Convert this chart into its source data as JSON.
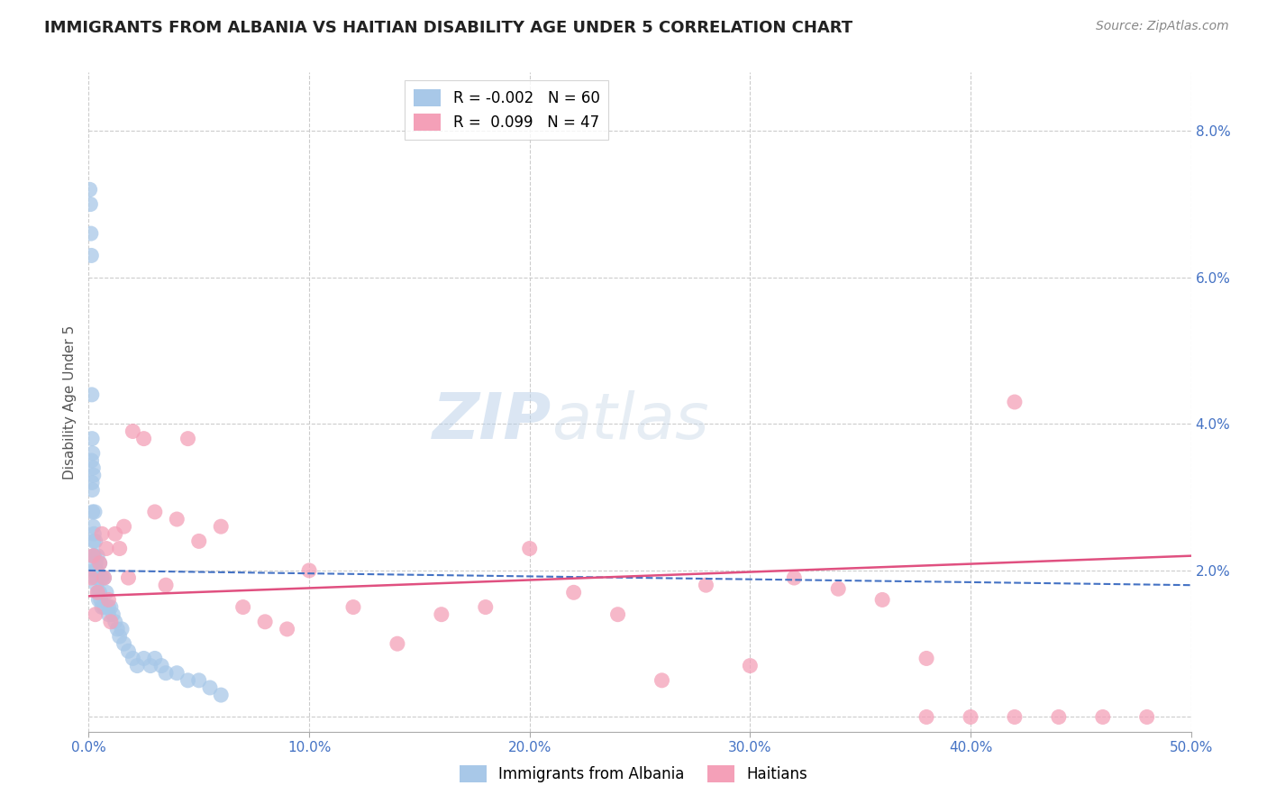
{
  "title": "IMMIGRANTS FROM ALBANIA VS HAITIAN DISABILITY AGE UNDER 5 CORRELATION CHART",
  "source": "Source: ZipAtlas.com",
  "ylabel": "Disability Age Under 5",
  "xlim": [
    0.0,
    0.5
  ],
  "ylim": [
    -0.002,
    0.088
  ],
  "yticks": [
    0.0,
    0.02,
    0.04,
    0.06,
    0.08
  ],
  "ytick_labels": [
    "",
    "2.0%",
    "4.0%",
    "6.0%",
    "8.0%"
  ],
  "xticks": [
    0.0,
    0.1,
    0.2,
    0.3,
    0.4,
    0.5
  ],
  "xtick_labels": [
    "0.0%",
    "10.0%",
    "20.0%",
    "30.0%",
    "40.0%",
    "50.0%"
  ],
  "albania_color": "#a8c8e8",
  "haitian_color": "#f4a0b8",
  "albania_R": "-0.002",
  "albania_N": "60",
  "haitian_R": "0.099",
  "haitian_N": "47",
  "albania_line_color": "#4472c4",
  "haitian_line_color": "#e05080",
  "legend_label_albania": "Immigrants from Albania",
  "legend_label_haitian": "Haitians",
  "watermark_zip": "ZIP",
  "watermark_atlas": "atlas",
  "albania_x": [
    0.0005,
    0.0008,
    0.001,
    0.0012,
    0.0013,
    0.0014,
    0.0015,
    0.0015,
    0.0016,
    0.0017,
    0.0018,
    0.002,
    0.002,
    0.0022,
    0.0022,
    0.0023,
    0.0024,
    0.0025,
    0.0026,
    0.0027,
    0.003,
    0.003,
    0.0032,
    0.0033,
    0.0035,
    0.0035,
    0.004,
    0.004,
    0.0042,
    0.0045,
    0.005,
    0.005,
    0.0055,
    0.006,
    0.006,
    0.007,
    0.007,
    0.008,
    0.009,
    0.009,
    0.01,
    0.011,
    0.012,
    0.013,
    0.014,
    0.015,
    0.016,
    0.018,
    0.02,
    0.022,
    0.025,
    0.028,
    0.03,
    0.033,
    0.035,
    0.04,
    0.045,
    0.05,
    0.055,
    0.06
  ],
  "albania_y": [
    0.072,
    0.07,
    0.066,
    0.063,
    0.035,
    0.044,
    0.038,
    0.032,
    0.031,
    0.028,
    0.036,
    0.034,
    0.026,
    0.024,
    0.033,
    0.022,
    0.025,
    0.022,
    0.02,
    0.028,
    0.024,
    0.019,
    0.021,
    0.02,
    0.02,
    0.018,
    0.022,
    0.019,
    0.017,
    0.016,
    0.021,
    0.017,
    0.016,
    0.019,
    0.015,
    0.019,
    0.015,
    0.017,
    0.015,
    0.014,
    0.015,
    0.014,
    0.013,
    0.012,
    0.011,
    0.012,
    0.01,
    0.009,
    0.008,
    0.007,
    0.008,
    0.007,
    0.008,
    0.007,
    0.006,
    0.006,
    0.005,
    0.005,
    0.004,
    0.003
  ],
  "haitian_x": [
    0.001,
    0.002,
    0.003,
    0.004,
    0.005,
    0.006,
    0.007,
    0.008,
    0.009,
    0.01,
    0.012,
    0.014,
    0.016,
    0.018,
    0.02,
    0.025,
    0.03,
    0.035,
    0.04,
    0.045,
    0.05,
    0.06,
    0.07,
    0.08,
    0.09,
    0.1,
    0.12,
    0.14,
    0.16,
    0.18,
    0.2,
    0.22,
    0.24,
    0.26,
    0.28,
    0.3,
    0.32,
    0.34,
    0.36,
    0.38,
    0.4,
    0.42,
    0.44,
    0.46,
    0.48,
    0.42,
    0.38
  ],
  "haitian_y": [
    0.019,
    0.022,
    0.014,
    0.017,
    0.021,
    0.025,
    0.019,
    0.023,
    0.016,
    0.013,
    0.025,
    0.023,
    0.026,
    0.019,
    0.039,
    0.038,
    0.028,
    0.018,
    0.027,
    0.038,
    0.024,
    0.026,
    0.015,
    0.013,
    0.012,
    0.02,
    0.015,
    0.01,
    0.014,
    0.015,
    0.023,
    0.017,
    0.014,
    0.005,
    0.018,
    0.007,
    0.019,
    0.0175,
    0.016,
    0.0,
    0.0,
    0.043,
    0.0,
    0.0,
    0.0,
    0.0,
    0.008
  ],
  "background_color": "#ffffff",
  "grid_color": "#cccccc",
  "tick_color": "#4472c4",
  "title_color": "#222222",
  "title_fontsize": 13,
  "source_color": "#888888"
}
